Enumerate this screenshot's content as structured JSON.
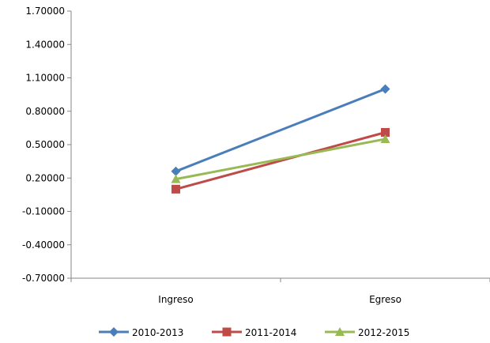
{
  "chart_data": {
    "type": "line",
    "title": "",
    "xlabel": "",
    "ylabel": "",
    "categories": [
      "Ingreso",
      "Egreso"
    ],
    "ylim": [
      -0.7,
      1.7
    ],
    "yticks": [
      1.7,
      1.4,
      1.1,
      0.8,
      0.5,
      0.2,
      -0.1,
      -0.4,
      -0.7
    ],
    "ytick_labels": [
      "1.70000",
      "1.40000",
      "1.10000",
      "0.80000",
      "0.50000",
      "0.20000",
      "-0.10000",
      "-0.40000",
      "-0.70000"
    ],
    "grid": false,
    "legend_position": "bottom",
    "series": [
      {
        "name": "2010-2013",
        "values": [
          0.26,
          1.0
        ],
        "color": "#4a7ebb",
        "marker": "diamond"
      },
      {
        "name": "2011-2014",
        "values": [
          0.1,
          0.61
        ],
        "color": "#be4b48",
        "marker": "square"
      },
      {
        "name": "2012-2015",
        "values": [
          0.19,
          0.55
        ],
        "color": "#98b954",
        "marker": "triangle"
      }
    ]
  }
}
